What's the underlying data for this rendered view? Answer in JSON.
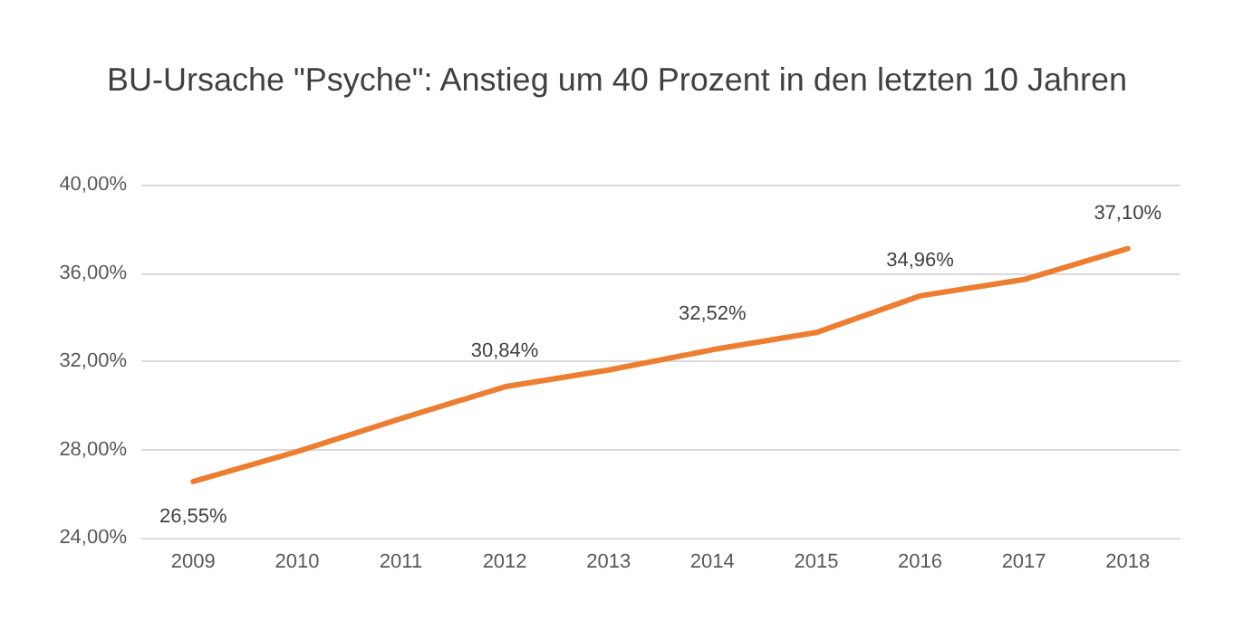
{
  "chart_data": {
    "type": "line",
    "title": "BU-Ursache \"Psyche\": Anstieg um 40 Prozent in den letzten 10 Jahren",
    "categories": [
      "2009",
      "2010",
      "2011",
      "2012",
      "2013",
      "2014",
      "2015",
      "2016",
      "2017",
      "2018"
    ],
    "series": [
      {
        "color": "#ed7d31",
        "values": [
          26.55,
          27.9,
          29.4,
          30.84,
          31.6,
          32.52,
          33.3,
          34.96,
          35.7,
          37.1
        ],
        "value_labels": [
          "26,55%",
          null,
          null,
          "30,84%",
          null,
          "32,52%",
          null,
          "34,96%",
          null,
          "37,10%"
        ]
      }
    ],
    "ylim": [
      24,
      40
    ],
    "yticks": [
      {
        "value": 24,
        "label": "24,00%"
      },
      {
        "value": 28,
        "label": "28,00%"
      },
      {
        "value": 32,
        "label": "32,00%"
      },
      {
        "value": 36,
        "label": "36,00%"
      },
      {
        "value": 40,
        "label": "40,00%"
      }
    ],
    "grid": "y",
    "marker": "none",
    "line_style": "solid"
  }
}
